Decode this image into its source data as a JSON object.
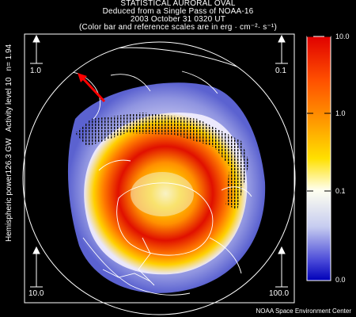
{
  "header": {
    "line1": "STATISTICAL AURORAL OVAL",
    "line2": "Deduced from a Single Pass of NOAA-16",
    "line3": "2003 October 31 0320 UT",
    "line4": "(Color bar and reference scales are in erg · cm⁻²· s⁻¹)"
  },
  "side_label": {
    "power": "Hemispheric power126.3 GW",
    "activity": "Activity level 10",
    "n": "n=  1.94"
  },
  "reference_scales": {
    "top_left": "1.0",
    "top_right": "0.1",
    "bottom_left": "10.0",
    "bottom_right": "100.0"
  },
  "colorbar": {
    "tick_labels": [
      "10.0",
      "1.0",
      "0.1",
      "0.0"
    ],
    "scale": "log",
    "colors": [
      "#e00000",
      "#ff6a00",
      "#ffd000",
      "#fffff0",
      "#c8cff0",
      "#3a3ad8",
      "#0000c0"
    ]
  },
  "credit": "NOAA Space Environment Center",
  "colors": {
    "background": "#000000",
    "foreground": "#ffffff",
    "oval_core": "#e00000",
    "oval_mid": "#ff8c00",
    "oval_edge": "#ffe000",
    "low_flux": "#7f86d8",
    "track": "#111111",
    "sun_arrow": "#ff0000"
  }
}
